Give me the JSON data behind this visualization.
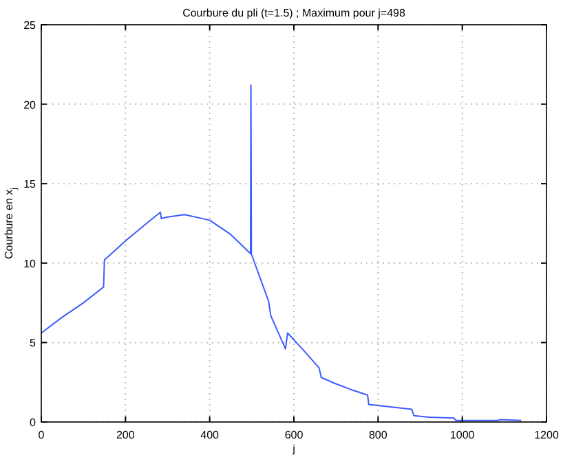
{
  "chart_data": {
    "type": "line",
    "title": "Courbure du pli (t=1.5) ; Maximum pour j=498",
    "xlabel": "j",
    "ylabel": "Courbure en x$_{j}$",
    "x": [
      0,
      50,
      100,
      148,
      150,
      200,
      250,
      283,
      285,
      300,
      340,
      400,
      450,
      497,
      498,
      499,
      500,
      540,
      545,
      580,
      585,
      620,
      660,
      665,
      700,
      740,
      775,
      778,
      880,
      885,
      920,
      980,
      985,
      1085,
      1090,
      1140
    ],
    "series": [
      {
        "color": "#3b5bff",
        "values": [
          5.6,
          6.6,
          7.5,
          8.5,
          10.2,
          11.4,
          12.5,
          13.2,
          12.8,
          12.9,
          13.05,
          12.7,
          11.8,
          10.6,
          21.2,
          10.6,
          10.5,
          7.6,
          6.7,
          4.6,
          5.6,
          4.6,
          3.4,
          2.8,
          2.4,
          2.0,
          1.7,
          1.1,
          0.8,
          0.4,
          0.3,
          0.25,
          0.1,
          0.1,
          0.15,
          0.1
        ]
      }
    ],
    "xlim": [
      0,
      1200
    ],
    "xticks": [
      0,
      200,
      400,
      600,
      800,
      1000,
      1200
    ],
    "ylim": [
      0,
      25
    ],
    "yticks": [
      0,
      5,
      10,
      15,
      20,
      25
    ],
    "grid": true
  }
}
